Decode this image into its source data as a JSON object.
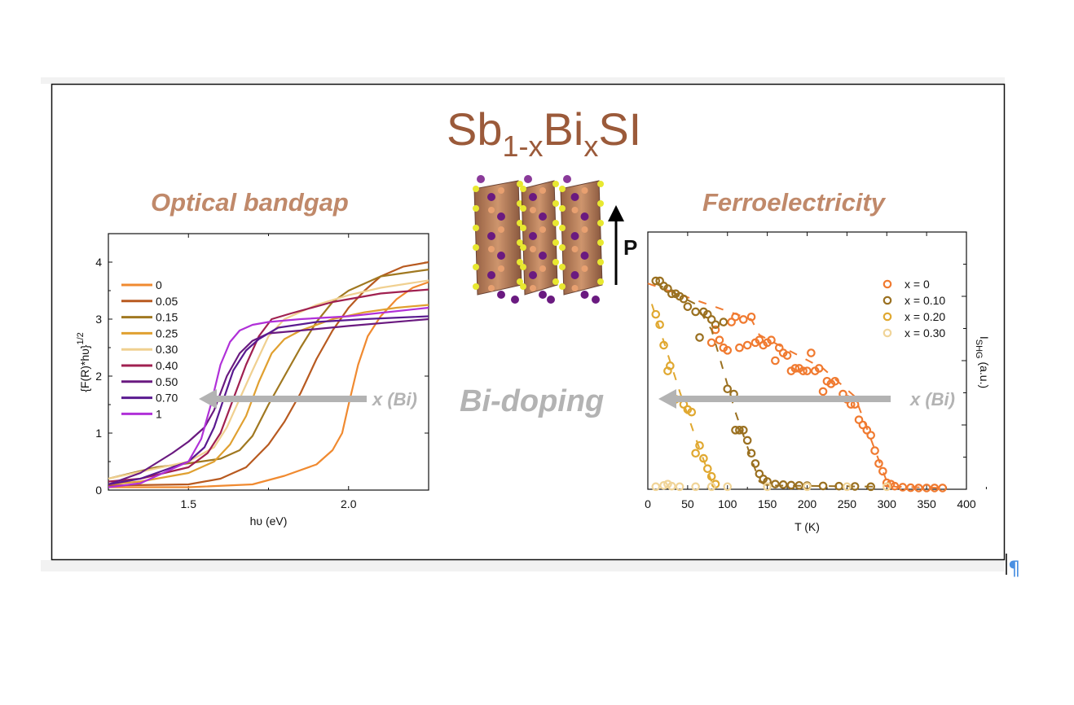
{
  "title": {
    "main": "Sb",
    "sub1": "1-x",
    "mid": "Bi",
    "sub2": "x",
    "end": "SI"
  },
  "headings": {
    "left": "Optical bandgap",
    "right": "Ferroelectricity",
    "center": "Bi-doping",
    "polarization": "P"
  },
  "arrow_label": "x (Bi)",
  "colors": {
    "title": "#9b5a3a",
    "heading": "#c0896a",
    "arrow": "#b3b3b3",
    "pilcrow": "#4a90e2"
  },
  "pilcrow": "¶",
  "chart_data": [
    {
      "type": "line",
      "title": "Optical bandgap",
      "xlabel": "hυ (eV)",
      "ylabel": "{F(R)*hυ}",
      "ylabel_sup": "1/2",
      "xlim": [
        1.25,
        2.25
      ],
      "ylim": [
        0,
        4.5
      ],
      "xticks": [
        "1.5",
        "2.0"
      ],
      "yticks": [
        "0",
        "1",
        "2",
        "3",
        "4"
      ],
      "legend_position": "top-left",
      "series": [
        {
          "name": "0",
          "color": "#f08a30",
          "x": [
            1.25,
            1.5,
            1.7,
            1.8,
            1.9,
            1.95,
            1.98,
            2.0,
            2.03,
            2.06,
            2.1,
            2.15,
            2.2,
            2.25
          ],
          "y": [
            0.05,
            0.05,
            0.1,
            0.25,
            0.45,
            0.7,
            1.0,
            1.5,
            2.2,
            2.7,
            3.05,
            3.35,
            3.55,
            3.65
          ]
        },
        {
          "name": "0.05",
          "color": "#b85a20",
          "x": [
            1.25,
            1.5,
            1.6,
            1.68,
            1.75,
            1.8,
            1.85,
            1.9,
            1.95,
            2.0,
            2.05,
            2.1,
            2.17,
            2.25
          ],
          "y": [
            0.08,
            0.1,
            0.2,
            0.4,
            0.8,
            1.2,
            1.7,
            2.3,
            2.8,
            3.2,
            3.5,
            3.75,
            3.92,
            4.0
          ]
        },
        {
          "name": "0.15",
          "color": "#a07820",
          "x": [
            1.25,
            1.4,
            1.5,
            1.6,
            1.66,
            1.7,
            1.75,
            1.8,
            1.85,
            1.9,
            1.95,
            2.0,
            2.1,
            2.25
          ],
          "y": [
            0.2,
            0.4,
            0.47,
            0.55,
            0.7,
            0.95,
            1.5,
            2.0,
            2.5,
            2.95,
            3.3,
            3.5,
            3.75,
            3.87
          ]
        },
        {
          "name": "0.25",
          "color": "#e0a030",
          "x": [
            1.25,
            1.35,
            1.5,
            1.58,
            1.63,
            1.68,
            1.72,
            1.76,
            1.8,
            1.85,
            1.95,
            2.05,
            2.15,
            2.25
          ],
          "y": [
            0.1,
            0.15,
            0.3,
            0.5,
            0.8,
            1.3,
            1.9,
            2.4,
            2.65,
            2.8,
            3.0,
            3.12,
            3.2,
            3.25
          ]
        },
        {
          "name": "0.30",
          "color": "#f0d090",
          "x": [
            1.25,
            1.35,
            1.5,
            1.58,
            1.62,
            1.66,
            1.7,
            1.75,
            1.8,
            1.9,
            2.0,
            2.1,
            2.25
          ],
          "y": [
            0.2,
            0.32,
            0.5,
            0.75,
            1.1,
            1.6,
            2.1,
            2.7,
            3.0,
            3.25,
            3.42,
            3.55,
            3.68
          ]
        },
        {
          "name": "0.40",
          "color": "#a02050",
          "x": [
            1.25,
            1.35,
            1.5,
            1.56,
            1.6,
            1.64,
            1.68,
            1.72,
            1.76,
            1.82,
            1.95,
            2.1,
            2.25
          ],
          "y": [
            0.15,
            0.2,
            0.4,
            0.65,
            1.0,
            1.6,
            2.2,
            2.7,
            3.0,
            3.1,
            3.3,
            3.45,
            3.52
          ]
        },
        {
          "name": "0.50",
          "color": "#6a1a80",
          "x": [
            1.25,
            1.35,
            1.45,
            1.5,
            1.55,
            1.58,
            1.62,
            1.66,
            1.7,
            1.75,
            1.85,
            2.0,
            2.25
          ],
          "y": [
            0.1,
            0.3,
            0.65,
            0.85,
            1.1,
            1.4,
            2.0,
            2.4,
            2.62,
            2.75,
            2.8,
            2.88,
            3.0
          ]
        },
        {
          "name": "0.70",
          "color": "#5a1a90",
          "x": [
            1.25,
            1.35,
            1.5,
            1.55,
            1.58,
            1.61,
            1.64,
            1.68,
            1.72,
            1.78,
            1.9,
            2.05,
            2.25
          ],
          "y": [
            0.1,
            0.2,
            0.5,
            0.75,
            1.1,
            1.6,
            2.1,
            2.45,
            2.65,
            2.85,
            2.95,
            3.0,
            3.05
          ]
        },
        {
          "name": "1",
          "color": "#b030d8",
          "x": [
            1.25,
            1.35,
            1.5,
            1.54,
            1.57,
            1.6,
            1.63,
            1.66,
            1.7,
            1.75,
            1.85,
            2.0,
            2.25
          ],
          "y": [
            0.05,
            0.12,
            0.5,
            0.9,
            1.5,
            2.2,
            2.6,
            2.8,
            2.9,
            2.95,
            3.0,
            3.05,
            3.2
          ]
        }
      ]
    },
    {
      "type": "scatter",
      "title": "Ferroelectricity",
      "xlabel": "T (K)",
      "ylabel": "I",
      "ylabel_sub": "SHG",
      "ylabel_end": " (a.u.)",
      "xlim": [
        0,
        400
      ],
      "ylim": [
        0,
        1
      ],
      "xticks": [
        "0",
        "50",
        "100",
        "150",
        "200",
        "250",
        "300",
        "350",
        "400"
      ],
      "legend_position": "top-right",
      "series": [
        {
          "name": "x = 0",
          "color": "#f07a30",
          "x": [
            80,
            85,
            90,
            95,
            100,
            105,
            110,
            120,
            130,
            115,
            125,
            135,
            140,
            145,
            150,
            155,
            160,
            165,
            170,
            175,
            180,
            185,
            190,
            195,
            200,
            205,
            210,
            215,
            220,
            225,
            230,
            235,
            245,
            250,
            255,
            260,
            265,
            270,
            275,
            280,
            285,
            290,
            295,
            300,
            305,
            310,
            320,
            330,
            340,
            350,
            360,
            370
          ],
          "y": [
            0.57,
            0.62,
            0.58,
            0.55,
            0.54,
            0.65,
            0.67,
            0.66,
            0.67,
            0.55,
            0.56,
            0.57,
            0.58,
            0.56,
            0.57,
            0.58,
            0.5,
            0.55,
            0.53,
            0.52,
            0.46,
            0.47,
            0.47,
            0.46,
            0.46,
            0.53,
            0.46,
            0.47,
            0.38,
            0.42,
            0.41,
            0.42,
            0.37,
            0.35,
            0.33,
            0.33,
            0.27,
            0.25,
            0.23,
            0.21,
            0.15,
            0.1,
            0.07,
            0.025,
            0.02,
            0.012,
            0.008,
            0.006,
            0.005,
            0.005,
            0.005,
            0.005
          ],
          "fit_x": [
            0,
            130,
            140,
            220,
            260,
            300,
            310,
            370
          ],
          "fit_y": [
            0.8,
            0.66,
            0.6,
            0.47,
            0.36,
            0.03,
            0.01,
            0.005
          ]
        },
        {
          "name": "x = 0.10",
          "color": "#9a7020",
          "x": [
            10,
            15,
            20,
            25,
            30,
            35,
            40,
            45,
            50,
            60,
            65,
            70,
            75,
            80,
            85,
            95,
            100,
            108,
            110,
            115,
            120,
            125,
            130,
            135,
            140,
            145,
            150,
            160,
            170,
            180,
            190,
            200,
            220,
            240,
            260,
            280
          ],
          "y": [
            0.81,
            0.81,
            0.79,
            0.78,
            0.76,
            0.76,
            0.75,
            0.74,
            0.71,
            0.69,
            0.59,
            0.69,
            0.68,
            0.66,
            0.64,
            0.65,
            0.39,
            0.37,
            0.23,
            0.23,
            0.23,
            0.19,
            0.14,
            0.1,
            0.06,
            0.04,
            0.03,
            0.02,
            0.018,
            0.016,
            0.015,
            0.014,
            0.013,
            0.012,
            0.011,
            0.01
          ],
          "fit_x": [
            10,
            60,
            80,
            110,
            140,
            150,
            290
          ],
          "fit_y": [
            0.8,
            0.72,
            0.62,
            0.3,
            0.03,
            0.015,
            0.01
          ]
        },
        {
          "name": "x = 0.20",
          "color": "#e0a830",
          "x": [
            10,
            15,
            20,
            25,
            28,
            35,
            45,
            50,
            55,
            60,
            65,
            70,
            75,
            80,
            85
          ],
          "y": [
            0.68,
            0.64,
            0.56,
            0.46,
            0.48,
            0.35,
            0.33,
            0.31,
            0.3,
            0.14,
            0.17,
            0.12,
            0.08,
            0.05,
            0.02
          ],
          "fit_x": [
            5,
            40,
            60,
            80,
            90
          ],
          "fit_y": [
            0.72,
            0.38,
            0.2,
            0.03,
            0.01
          ]
        },
        {
          "name": "x = 0.30",
          "color": "#f0d498",
          "x": [
            10,
            20,
            25,
            30,
            40,
            60,
            80,
            100,
            150,
            200,
            250,
            300
          ],
          "y": [
            0.01,
            0.015,
            0.02,
            0.012,
            0.01,
            0.01,
            0.01,
            0.01,
            0.01,
            0.01,
            0.01,
            0.01
          ],
          "fit_x": [],
          "fit_y": []
        }
      ]
    }
  ]
}
